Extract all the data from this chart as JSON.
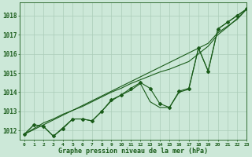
{
  "title": "Graphe pression niveau de la mer (hPa)",
  "background_color": "#cce8d8",
  "grid_color": "#aaccb8",
  "line_color": "#1a5c1a",
  "xlim": [
    -0.5,
    23
  ],
  "ylim": [
    1011.5,
    1018.7
  ],
  "yticks": [
    1012,
    1013,
    1014,
    1015,
    1016,
    1017,
    1018
  ],
  "xticks": [
    0,
    1,
    2,
    3,
    4,
    5,
    6,
    7,
    8,
    9,
    10,
    11,
    12,
    13,
    14,
    15,
    16,
    17,
    18,
    19,
    20,
    21,
    22,
    23
  ],
  "series_main": [
    1011.8,
    1012.3,
    1012.2,
    1011.7,
    1012.1,
    1012.6,
    1012.6,
    1012.5,
    1013.0,
    1013.6,
    1013.85,
    1014.2,
    1014.5,
    1014.2,
    1013.4,
    1013.2,
    1014.05,
    1014.2,
    1016.3,
    1015.1,
    1017.3,
    1017.65,
    1018.0,
    1018.35
  ],
  "series_smooth1": [
    1011.8,
    1012.05,
    1012.3,
    1012.55,
    1012.8,
    1013.05,
    1013.3,
    1013.55,
    1013.8,
    1014.05,
    1014.3,
    1014.55,
    1014.8,
    1015.05,
    1015.3,
    1015.55,
    1015.8,
    1016.05,
    1016.3,
    1016.55,
    1017.1,
    1017.45,
    1017.8,
    1018.35
  ],
  "series_smooth2": [
    1011.8,
    1012.1,
    1012.4,
    1012.6,
    1012.85,
    1013.05,
    1013.25,
    1013.5,
    1013.75,
    1014.0,
    1014.2,
    1014.45,
    1014.65,
    1014.85,
    1015.05,
    1015.2,
    1015.4,
    1015.6,
    1016.0,
    1016.4,
    1017.0,
    1017.4,
    1017.85,
    1018.35
  ],
  "series_stepped": [
    1011.8,
    1012.3,
    1012.2,
    1011.7,
    1012.15,
    1012.6,
    1012.6,
    1012.5,
    1013.0,
    1013.55,
    1013.85,
    1014.1,
    1014.45,
    1013.5,
    1013.2,
    1013.2,
    1014.0,
    1014.15,
    1016.3,
    1015.1,
    1017.3,
    1017.65,
    1018.0,
    1018.35
  ],
  "linewidth": 0.8,
  "marker": "D",
  "marker_size": 2.0
}
